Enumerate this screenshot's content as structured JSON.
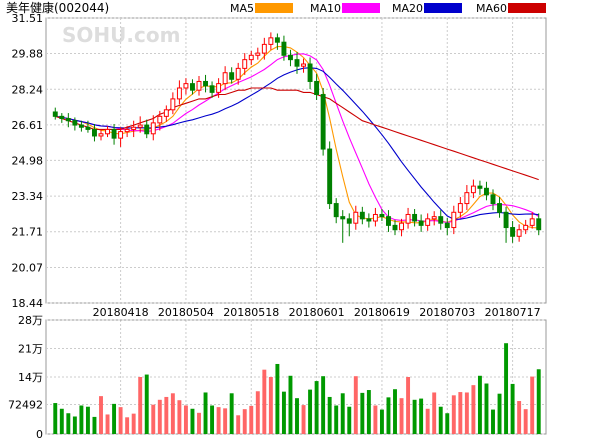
{
  "chart_data": {
    "type": "candlestick",
    "title": "美年健康(002044)",
    "watermark": "SOHU.com",
    "colors": {
      "up": "#ff0000",
      "down": "#008000",
      "ma5": "#ff9900",
      "ma10": "#ff00ff",
      "ma20": "#0000cc",
      "ma60": "#cc0000",
      "volume_up": "#ff6666",
      "volume_down": "#009900",
      "grid": "#cccccc"
    },
    "legend": [
      {
        "name": "MA5",
        "color": "#ff9900"
      },
      {
        "name": "MA10",
        "color": "#ff00ff"
      },
      {
        "name": "MA20",
        "color": "#0000cc"
      },
      {
        "name": "MA60",
        "color": "#cc0000"
      }
    ],
    "price_axis": {
      "ylim": [
        18.44,
        31.51
      ],
      "ticks": [
        "31.51",
        "29.88",
        "28.24",
        "26.61",
        "24.98",
        "23.34",
        "21.71",
        "20.07",
        "18.44"
      ]
    },
    "volume_axis": {
      "ylim": [
        0,
        28
      ],
      "ticks": [
        {
          "label": "28万",
          "value": 28
        },
        {
          "label": "21万",
          "value": 21
        },
        {
          "label": "14万",
          "value": 14
        },
        {
          "label": "72492",
          "value": 7.25
        },
        {
          "label": "0",
          "value": 0
        }
      ]
    },
    "x_labels": [
      "20180418",
      "20180504",
      "20180518",
      "20180601",
      "20180619",
      "20180703",
      "20180717"
    ],
    "x_label_index": [
      10,
      20,
      30,
      40,
      50,
      60,
      70
    ],
    "close": [
      27.0,
      26.9,
      26.8,
      26.6,
      26.5,
      26.4,
      26.1,
      26.2,
      26.4,
      26.0,
      26.3,
      26.4,
      26.5,
      26.6,
      26.2,
      26.7,
      27.0,
      27.3,
      27.8,
      28.3,
      28.5,
      28.2,
      28.6,
      28.4,
      28.1,
      28.5,
      29.0,
      28.7,
      29.2,
      29.6,
      29.8,
      29.9,
      30.3,
      30.6,
      30.4,
      29.8,
      29.6,
      29.3,
      29.4,
      28.6,
      28.0,
      25.5,
      23.0,
      22.4,
      22.3,
      22.1,
      22.6,
      22.3,
      22.2,
      22.5,
      22.4,
      22.0,
      21.8,
      22.1,
      22.5,
      22.2,
      22.0,
      22.3,
      22.4,
      22.1,
      21.9,
      22.6,
      23.0,
      23.5,
      23.8,
      23.7,
      23.4,
      23.0,
      22.6,
      21.9,
      21.5,
      21.8,
      22.0,
      22.3,
      21.8
    ],
    "volume": [
      7.6,
      6.2,
      5.1,
      4.3,
      7.0,
      6.7,
      4.2,
      9.3,
      4.8,
      7.4,
      6.6,
      4.1,
      5.0,
      14.0,
      14.6,
      7.2,
      8.4,
      9.1,
      10.0,
      8.3,
      7.0,
      6.2,
      5.2,
      10.2,
      7.0,
      6.6,
      6.3,
      10.0,
      4.6,
      6.1,
      6.9,
      10.5,
      15.8,
      14.0,
      17.2,
      10.4,
      14.3,
      8.8,
      7.1,
      10.9,
      13.0,
      14.2,
      9.1,
      7.0,
      10.0,
      6.7,
      14.2,
      10.1,
      10.8,
      7.0,
      6.0,
      9.0,
      11.0,
      8.8,
      14.0,
      8.4,
      8.7,
      6.2,
      10.2,
      6.7,
      5.1,
      9.5,
      10.3,
      10.2,
      12.0,
      14.3,
      12.4,
      6.0,
      9.9,
      22.3,
      12.3,
      8.1,
      6.1,
      14.1,
      15.9
    ]
  }
}
